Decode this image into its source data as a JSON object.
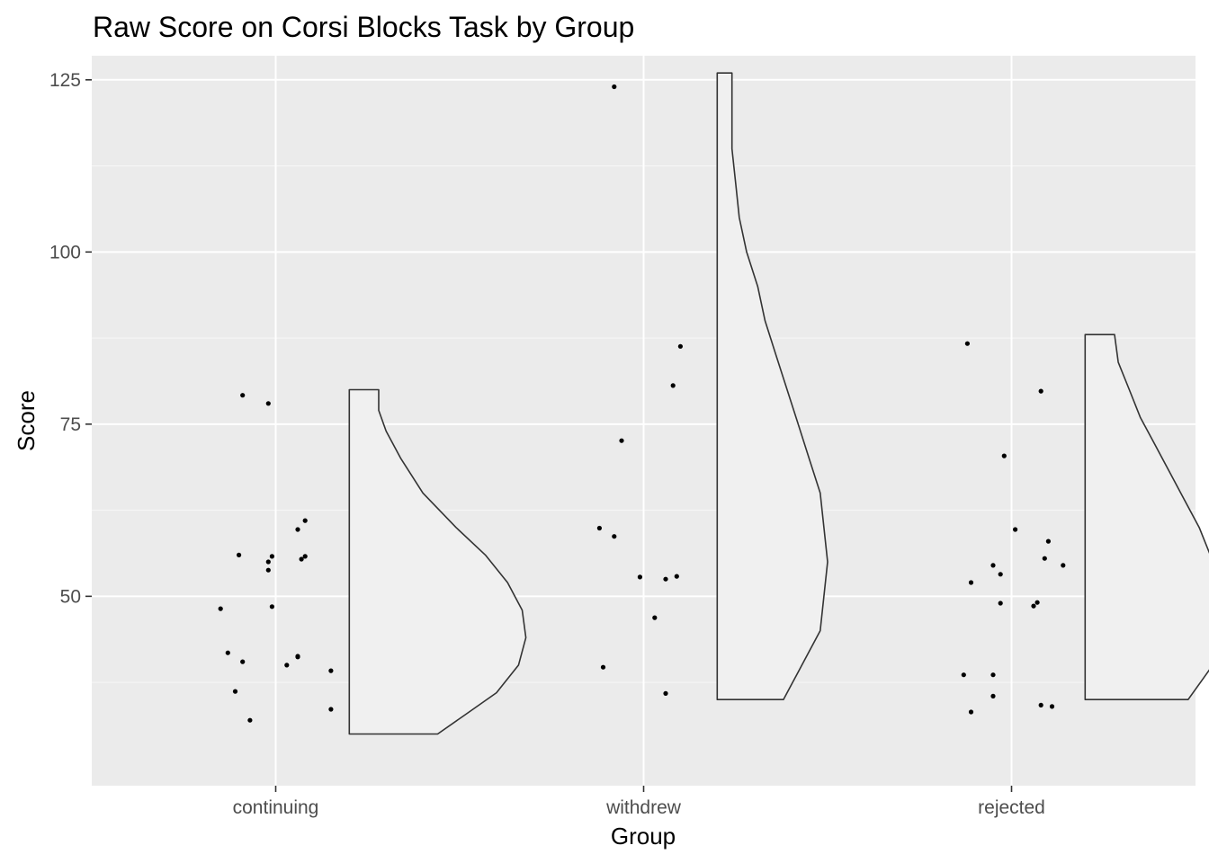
{
  "chart_data": {
    "type": "scatter",
    "subtype": "raincloud (jittered points + half violin)",
    "title": "Raw Score on Corsi Blocks Task by Group",
    "xlabel": "Group",
    "ylabel": "Score",
    "categories": [
      "continuing",
      "withdrew",
      "rejected"
    ],
    "ylim": [
      22.5,
      128.5
    ],
    "yticks": [
      50,
      75,
      100,
      125
    ],
    "grid": true,
    "panel_background": "#ebebeb",
    "grid_color": "#ffffff",
    "point_color": "#000000",
    "violin_fill": "#f0f0f0",
    "violin_stroke": "#333333",
    "series": [
      {
        "category": "continuing",
        "points": [
          {
            "dx": -0.15,
            "y": 48.2
          },
          {
            "dx": -0.13,
            "y": 41.8
          },
          {
            "dx": -0.11,
            "y": 36.2
          },
          {
            "dx": -0.1,
            "y": 56.0
          },
          {
            "dx": -0.09,
            "y": 79.2
          },
          {
            "dx": -0.09,
            "y": 40.5
          },
          {
            "dx": -0.07,
            "y": 32.0
          },
          {
            "dx": -0.02,
            "y": 78.0
          },
          {
            "dx": -0.02,
            "y": 55.0
          },
          {
            "dx": -0.02,
            "y": 53.8
          },
          {
            "dx": -0.01,
            "y": 55.8
          },
          {
            "dx": -0.01,
            "y": 48.5
          },
          {
            "dx": 0.03,
            "y": 40.0
          },
          {
            "dx": 0.06,
            "y": 41.2
          },
          {
            "dx": 0.06,
            "y": 59.7
          },
          {
            "dx": 0.06,
            "y": 41.3
          },
          {
            "dx": 0.07,
            "y": 55.4
          },
          {
            "dx": 0.08,
            "y": 55.8
          },
          {
            "dx": 0.08,
            "y": 61.0
          },
          {
            "dx": 0.15,
            "y": 39.2
          },
          {
            "dx": 0.15,
            "y": 33.6
          }
        ],
        "violin": {
          "ymin": 30.0,
          "ymax": 80.0,
          "profile": [
            [
              30,
              0.24
            ],
            [
              33,
              0.32
            ],
            [
              36,
              0.4
            ],
            [
              40,
              0.46
            ],
            [
              44,
              0.48
            ],
            [
              48,
              0.47
            ],
            [
              52,
              0.43
            ],
            [
              56,
              0.37
            ],
            [
              60,
              0.29
            ],
            [
              65,
              0.2
            ],
            [
              70,
              0.14
            ],
            [
              74,
              0.1
            ],
            [
              77,
              0.08
            ],
            [
              80,
              0.08
            ]
          ]
        }
      },
      {
        "category": "withdrew",
        "points": [
          {
            "dx": -0.12,
            "y": 59.9
          },
          {
            "dx": -0.11,
            "y": 39.7
          },
          {
            "dx": -0.08,
            "y": 124.0
          },
          {
            "dx": -0.08,
            "y": 58.7
          },
          {
            "dx": -0.06,
            "y": 72.6
          },
          {
            "dx": -0.01,
            "y": 52.8
          },
          {
            "dx": 0.03,
            "y": 46.9
          },
          {
            "dx": 0.06,
            "y": 35.9
          },
          {
            "dx": 0.06,
            "y": 52.5
          },
          {
            "dx": 0.08,
            "y": 80.6
          },
          {
            "dx": 0.09,
            "y": 52.9
          },
          {
            "dx": 0.1,
            "y": 86.3
          }
        ],
        "violin": {
          "ymin": 35.0,
          "ymax": 126.0,
          "profile": [
            [
              35,
              0.18
            ],
            [
              40,
              0.23
            ],
            [
              45,
              0.28
            ],
            [
              50,
              0.29
            ],
            [
              55,
              0.3
            ],
            [
              60,
              0.29
            ],
            [
              65,
              0.28
            ],
            [
              70,
              0.25
            ],
            [
              75,
              0.22
            ],
            [
              80,
              0.19
            ],
            [
              85,
              0.16
            ],
            [
              90,
              0.13
            ],
            [
              95,
              0.11
            ],
            [
              100,
              0.08
            ],
            [
              105,
              0.06
            ],
            [
              110,
              0.05
            ],
            [
              115,
              0.04
            ],
            [
              120,
              0.04
            ],
            [
              126,
              0.04
            ]
          ]
        }
      },
      {
        "category": "rejected",
        "points": [
          {
            "dx": -0.13,
            "y": 38.6
          },
          {
            "dx": -0.12,
            "y": 86.7
          },
          {
            "dx": -0.11,
            "y": 52.0
          },
          {
            "dx": -0.11,
            "y": 33.2
          },
          {
            "dx": -0.05,
            "y": 54.5
          },
          {
            "dx": -0.05,
            "y": 35.5
          },
          {
            "dx": -0.05,
            "y": 38.6
          },
          {
            "dx": -0.03,
            "y": 49.0
          },
          {
            "dx": -0.03,
            "y": 53.2
          },
          {
            "dx": -0.02,
            "y": 70.4
          },
          {
            "dx": 0.01,
            "y": 59.7
          },
          {
            "dx": 0.06,
            "y": 48.6
          },
          {
            "dx": 0.07,
            "y": 49.1
          },
          {
            "dx": 0.08,
            "y": 34.2
          },
          {
            "dx": 0.08,
            "y": 79.8
          },
          {
            "dx": 0.09,
            "y": 55.5
          },
          {
            "dx": 0.1,
            "y": 58.0
          },
          {
            "dx": 0.11,
            "y": 34.0
          },
          {
            "dx": 0.14,
            "y": 54.5
          }
        ],
        "violin": {
          "ymin": 35.0,
          "ymax": 88.0,
          "profile": [
            [
              35,
              0.28
            ],
            [
              38,
              0.32
            ],
            [
              41,
              0.36
            ],
            [
              44,
              0.38
            ],
            [
              48,
              0.39
            ],
            [
              52,
              0.37
            ],
            [
              56,
              0.34
            ],
            [
              60,
              0.31
            ],
            [
              64,
              0.27
            ],
            [
              68,
              0.23
            ],
            [
              72,
              0.19
            ],
            [
              76,
              0.15
            ],
            [
              80,
              0.12
            ],
            [
              84,
              0.09
            ],
            [
              88,
              0.08
            ]
          ]
        }
      }
    ]
  }
}
